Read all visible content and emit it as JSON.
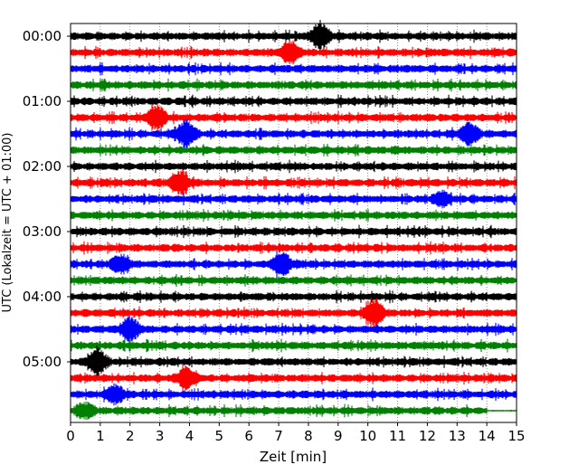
{
  "chart_data": {
    "type": "line",
    "title": "",
    "xlabel": "Zeit  [min]",
    "ylabel": "UTC (Lokalzeit = UTC + 01:00)",
    "xlim": [
      0,
      15
    ],
    "x_ticks": [
      "0",
      "1",
      "2",
      "3",
      "4",
      "5",
      "6",
      "7",
      "8",
      "9",
      "10",
      "11",
      "12",
      "13",
      "14",
      "15"
    ],
    "y_ticks": [
      {
        "label": "00:00",
        "trace": 0
      },
      {
        "label": "01:00",
        "trace": 4
      },
      {
        "label": "02:00",
        "trace": 8
      },
      {
        "label": "03:00",
        "trace": 12
      },
      {
        "label": "04:00",
        "trace": 16
      },
      {
        "label": "05:00",
        "trace": 20
      }
    ],
    "trace_count": 24,
    "minutes_per_trace": 15,
    "colors": [
      "#000000",
      "#ff0000",
      "#0000ff",
      "#008000"
    ],
    "grid": "vertical dotted",
    "events": [
      {
        "trace": 0,
        "minute": 8.4,
        "amplitude": 1.8
      },
      {
        "trace": 1,
        "minute": 7.4,
        "amplitude": 1.6
      },
      {
        "trace": 5,
        "minute": 2.9,
        "amplitude": 1.5
      },
      {
        "trace": 6,
        "minute": 3.9,
        "amplitude": 1.9
      },
      {
        "trace": 6,
        "minute": 13.4,
        "amplitude": 1.7
      },
      {
        "trace": 9,
        "minute": 3.7,
        "amplitude": 1.6
      },
      {
        "trace": 10,
        "minute": 12.5,
        "amplitude": 1.0
      },
      {
        "trace": 14,
        "minute": 1.7,
        "amplitude": 1.2
      },
      {
        "trace": 14,
        "minute": 7.1,
        "amplitude": 1.9
      },
      {
        "trace": 17,
        "minute": 10.2,
        "amplitude": 2.0
      },
      {
        "trace": 18,
        "minute": 2.0,
        "amplitude": 1.6
      },
      {
        "trace": 20,
        "minute": 0.9,
        "amplitude": 1.8
      },
      {
        "trace": 21,
        "minute": 3.9,
        "amplitude": 1.4
      },
      {
        "trace": 22,
        "minute": 1.5,
        "amplitude": 1.3
      },
      {
        "trace": 23,
        "minute": 0.5,
        "amplitude": 1.0
      }
    ],
    "last_trace_end_minute": 14
  }
}
